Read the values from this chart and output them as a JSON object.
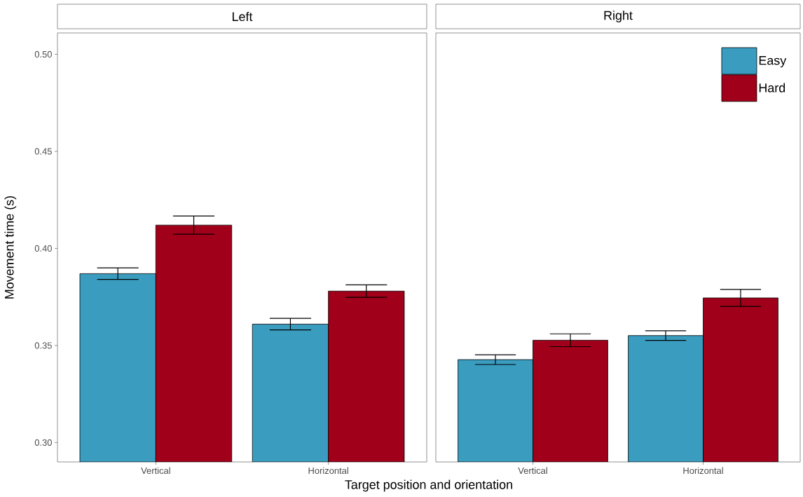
{
  "chart_data": [
    {
      "type": "bar",
      "title": "Left",
      "ylabel": "Movement time (s)",
      "xlabel": "Target position and orientation",
      "categories": [
        "Vertical",
        "Horizontal"
      ],
      "ylim": [
        0.29,
        0.511
      ],
      "yticks": [
        {
          "value": 0.3,
          "label": "0.30"
        },
        {
          "value": 0.35,
          "label": "0.35"
        },
        {
          "value": 0.4,
          "label": "0.40"
        },
        {
          "value": 0.45,
          "label": "0.45"
        },
        {
          "value": 0.5,
          "label": "0.50"
        }
      ],
      "grid": false,
      "series": [
        {
          "color": "#3a9dbf",
          "values": [
            0.387,
            0.361
          ],
          "errors": [
            0.003,
            0.003
          ]
        },
        {
          "color": "#a00019",
          "values": [
            0.412,
            0.378
          ],
          "errors": [
            0.0047,
            0.0032
          ]
        }
      ]
    },
    {
      "type": "bar",
      "title": "Right",
      "categories": [
        "Vertical",
        "Horizontal"
      ],
      "ylim": [
        0.29,
        0.511
      ],
      "tick_labels": "x",
      "grid": false,
      "legend": "top right",
      "series": [
        {
          "name": "Easy",
          "color": "#3a9dbf",
          "values": [
            0.3427,
            0.3551
          ],
          "errors": [
            0.0025,
            0.0025
          ]
        },
        {
          "name": "Hard",
          "color": "#a00019",
          "values": [
            0.3527,
            0.3745
          ],
          "errors": [
            0.0033,
            0.0044
          ]
        }
      ]
    }
  ]
}
